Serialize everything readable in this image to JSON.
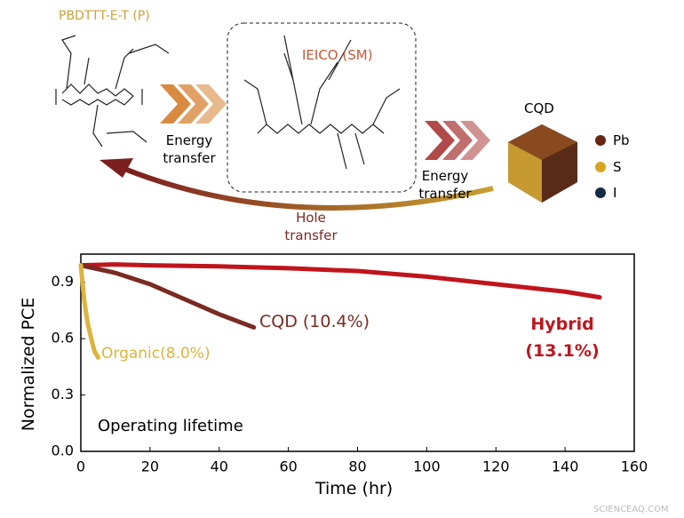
{
  "diagram": {
    "polymer": "PBDTTT-E-T (P)",
    "small_molecule": "IEICO (SM)",
    "dot": "CQD",
    "energy_transfer_1": "Energy transfer",
    "energy_transfer_2": "Energy transfer",
    "hole_transfer": "Hole transfer",
    "legend": [
      "Pb",
      "S",
      "I"
    ],
    "watermark": "SCIENCEAQ.COM"
  },
  "chart_data": {
    "type": "line",
    "xlabel": "Time (hr)",
    "ylabel": "Normalized PCE",
    "annotation": "Operating lifetime",
    "xlim": [
      0,
      160
    ],
    "xticks": [
      0,
      20,
      40,
      60,
      80,
      100,
      120,
      140,
      160
    ],
    "ylim": [
      0,
      1.05
    ],
    "yticks": [
      {
        "value": 0,
        "label": "0.0"
      },
      0.3,
      0.6,
      0.9
    ],
    "series": [
      {
        "name": "Hybrid (13.1%)",
        "color": "#c0141c",
        "x": [
          0,
          10,
          20,
          40,
          60,
          80,
          100,
          120,
          140,
          150
        ],
        "values": [
          0.99,
          0.995,
          0.99,
          0.985,
          0.975,
          0.96,
          0.93,
          0.89,
          0.85,
          0.82
        ]
      },
      {
        "name": "CQD (10.4%)",
        "color": "#7a2a22",
        "x": [
          0,
          10,
          20,
          30,
          40,
          50
        ],
        "values": [
          0.99,
          0.95,
          0.89,
          0.81,
          0.73,
          0.66
        ]
      },
      {
        "name": "Organic(8.0%)",
        "color": "#dcb43c",
        "x": [
          0,
          1,
          2,
          3,
          4,
          5
        ],
        "values": [
          0.99,
          0.8,
          0.68,
          0.6,
          0.53,
          0.5
        ]
      }
    ]
  }
}
